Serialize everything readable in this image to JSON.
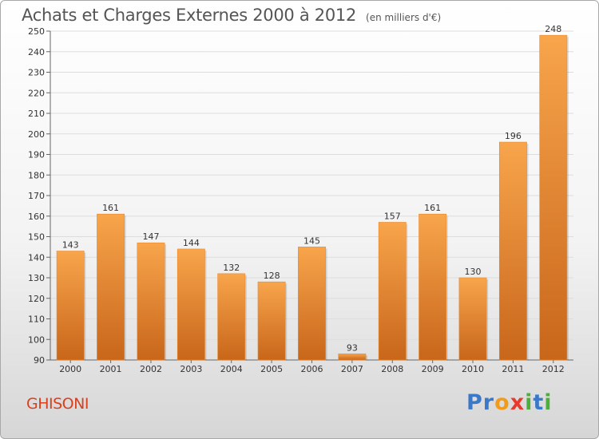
{
  "header": {
    "title": "Achats et Charges Externes 2000 à 2012",
    "subtitle": "(en milliers d'€)"
  },
  "footer": {
    "place": "GHISONI",
    "logo": "Proxiti"
  },
  "colors": {
    "bar_light": "#f8a54c",
    "bar_dark": "#c8661a",
    "place": "#d9401e"
  },
  "chart_data": {
    "type": "bar",
    "title": "Achats et Charges Externes 2000 à 2012",
    "subtitle": "(en milliers d'€)",
    "categories": [
      "2000",
      "2001",
      "2002",
      "2003",
      "2004",
      "2005",
      "2006",
      "2007",
      "2008",
      "2009",
      "2010",
      "2011",
      "2012"
    ],
    "values": [
      143,
      161,
      147,
      144,
      132,
      128,
      145,
      93,
      157,
      161,
      130,
      196,
      248
    ],
    "ylim": [
      90,
      250
    ],
    "yticks": [
      90,
      100,
      110,
      120,
      130,
      140,
      150,
      160,
      170,
      180,
      190,
      200,
      210,
      220,
      230,
      240,
      250
    ],
    "grid": true
  }
}
